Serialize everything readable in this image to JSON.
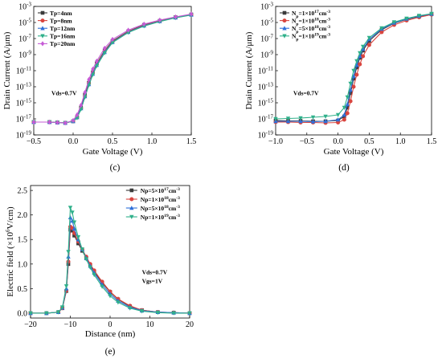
{
  "chart_data": [
    {
      "panel": "(c)",
      "type": "line",
      "xlabel": "Gate Voltage (V)",
      "ylabel": "Drain Current (A/μm)",
      "xlim": [
        -0.5,
        1.5
      ],
      "ylim_exp": [
        -19,
        -3
      ],
      "yscale": "log",
      "xticks": [
        "−0.5",
        "0.0",
        "0.5",
        "1.0",
        "1.5"
      ],
      "ytick_exponents": [
        "-3",
        "-5",
        "-7",
        "-9",
        "-11",
        "-13",
        "-15",
        "-17",
        "-19"
      ],
      "annotation": "Vds=0.7V",
      "legend_position": "top-left",
      "x": [
        -0.5,
        -0.3,
        -0.2,
        -0.1,
        0.0,
        0.05,
        0.1,
        0.15,
        0.2,
        0.25,
        0.3,
        0.4,
        0.5,
        0.7,
        0.9,
        1.1,
        1.3,
        1.5
      ],
      "series": [
        {
          "name": "Tp=4nm",
          "color": "#3a3a3a",
          "marker": "square",
          "values": [
            -17.4,
            -17.4,
            -17.45,
            -17.5,
            -17.3,
            -16.8,
            -15.6,
            -14.0,
            -12.5,
            -11.2,
            -10.1,
            -8.5,
            -7.3,
            -6.1,
            -5.3,
            -4.8,
            -4.35,
            -4.0
          ]
        },
        {
          "name": "Tp=8nm",
          "color": "#d9453f",
          "marker": "circle",
          "values": [
            -17.4,
            -17.4,
            -17.45,
            -17.5,
            -17.3,
            -16.8,
            -15.7,
            -14.2,
            -12.6,
            -11.3,
            -10.2,
            -8.6,
            -7.4,
            -6.15,
            -5.35,
            -4.82,
            -4.37,
            -4.02
          ]
        },
        {
          "name": "Tp=12nm",
          "color": "#2e6fd9",
          "marker": "triangle-up",
          "values": [
            -17.4,
            -17.4,
            -17.45,
            -17.5,
            -17.3,
            -16.8,
            -15.7,
            -14.2,
            -12.7,
            -11.4,
            -10.3,
            -8.7,
            -7.45,
            -6.2,
            -5.4,
            -4.85,
            -4.4,
            -4.05
          ]
        },
        {
          "name": "Tp=16nm",
          "color": "#2fb08a",
          "marker": "triangle-down",
          "values": [
            -17.4,
            -17.4,
            -17.45,
            -17.5,
            -17.3,
            -16.9,
            -15.8,
            -14.3,
            -12.8,
            -11.5,
            -10.4,
            -8.8,
            -7.5,
            -6.25,
            -5.45,
            -4.88,
            -4.42,
            -4.07
          ]
        },
        {
          "name": "Tp=20nm",
          "color": "#c65bd6",
          "marker": "diamond",
          "values": [
            -17.4,
            -17.4,
            -17.45,
            -17.5,
            -17.2,
            -16.5,
            -15.3,
            -13.7,
            -12.1,
            -10.8,
            -9.8,
            -8.2,
            -7.1,
            -5.95,
            -5.2,
            -4.7,
            -4.3,
            -3.95
          ]
        }
      ]
    },
    {
      "panel": "(d)",
      "type": "line",
      "xlabel": "Gate Voltage (V)",
      "ylabel": "Drain Current (A/μm)",
      "xlim": [
        -1.0,
        1.5
      ],
      "ylim_exp": [
        -19,
        -3
      ],
      "yscale": "log",
      "xticks": [
        "−1.0",
        "−0.5",
        "0.0",
        "0.5",
        "1.0",
        "1.5"
      ],
      "ytick_exponents": [
        "-3",
        "-5",
        "-7",
        "-9",
        "-11",
        "-13",
        "-15",
        "-17",
        "-19"
      ],
      "annotation": "Vds=0.7V",
      "legend_position": "top-left",
      "x": [
        -1.0,
        -0.8,
        -0.6,
        -0.4,
        -0.2,
        0.0,
        0.1,
        0.15,
        0.2,
        0.25,
        0.3,
        0.35,
        0.4,
        0.5,
        0.7,
        0.9,
        1.1,
        1.3,
        1.5
      ],
      "series": [
        {
          "name": "1×10",
          "name_sup": "17",
          "name_tail": "cm",
          "name_tail_sup": "-3",
          "color": "#3a3a3a",
          "marker": "square",
          "values": [
            -17.2,
            -17.25,
            -17.25,
            -17.3,
            -17.3,
            -17.2,
            -16.7,
            -15.6,
            -13.8,
            -12.0,
            -10.6,
            -9.4,
            -8.5,
            -7.3,
            -5.9,
            -5.1,
            -4.6,
            -4.25,
            -3.95
          ]
        },
        {
          "name": "1×10",
          "name_sup": "18",
          "name_tail": "cm",
          "name_tail_sup": "-3",
          "color": "#d9453f",
          "marker": "circle",
          "values": [
            -17.4,
            -17.4,
            -17.45,
            -17.45,
            -17.5,
            -17.45,
            -17.1,
            -16.3,
            -14.8,
            -13.0,
            -11.5,
            -10.2,
            -9.2,
            -7.8,
            -6.2,
            -5.3,
            -4.75,
            -4.35,
            -4.02
          ]
        },
        {
          "name": "5×10",
          "name_sup": "18",
          "name_tail": "cm",
          "name_tail_sup": "-3",
          "color": "#2e6fd9",
          "marker": "triangle-up",
          "values": [
            -17.3,
            -17.3,
            -17.3,
            -17.35,
            -17.3,
            -17.1,
            -16.5,
            -15.2,
            -13.4,
            -11.7,
            -10.3,
            -9.2,
            -8.3,
            -7.1,
            -5.8,
            -5.05,
            -4.55,
            -4.2,
            -3.93
          ]
        },
        {
          "name": "1×10",
          "name_sup": "19",
          "name_tail": "cm",
          "name_tail_sup": "-3",
          "color": "#2fb08a",
          "marker": "triangle-down",
          "values": [
            -17.0,
            -16.95,
            -16.9,
            -16.8,
            -16.7,
            -16.5,
            -15.6,
            -14.3,
            -12.6,
            -11.0,
            -9.8,
            -8.8,
            -8.0,
            -6.9,
            -5.7,
            -4.95,
            -4.5,
            -4.15,
            -3.9
          ]
        }
      ],
      "legend_prefix": "N",
      "legend_prefix_sub": "p"
    },
    {
      "panel": "(e)",
      "type": "line",
      "xlabel": "Distance (nm)",
      "ylabel_main": "Electric field (×10",
      "ylabel_sup": "6",
      "ylabel_tail": "V/cm)",
      "xlim": [
        -20,
        20
      ],
      "ylim": [
        -0.1,
        2.6
      ],
      "xticks": [
        "−20",
        "−10",
        "0",
        "10",
        "20"
      ],
      "yticks": [
        "0.0",
        "0.5",
        "1.0",
        "1.5",
        "2.0",
        "2.5"
      ],
      "annotation_lines": [
        "Vds=0.7V",
        "Vgs=1V"
      ],
      "legend_position": "top-right",
      "x": [
        -20,
        -16,
        -13,
        -12,
        -11,
        -10.5,
        -10,
        -9.5,
        -9,
        -8,
        -7,
        -6,
        -5,
        -4,
        -2,
        0,
        2,
        5,
        8,
        12,
        16,
        20
      ],
      "series": [
        {
          "name": "Np=5×10",
          "name_sup": "17",
          "name_tail": "cm",
          "name_tail_sup": "-3",
          "color": "#3a3a3a",
          "marker": "square",
          "values": [
            0.0,
            0.0,
            0.02,
            0.1,
            0.45,
            1.0,
            1.7,
            1.68,
            1.58,
            1.42,
            1.27,
            1.12,
            0.98,
            0.85,
            0.62,
            0.43,
            0.28,
            0.14,
            0.06,
            0.02,
            0.01,
            0.0
          ]
        },
        {
          "name": "Np=1×10",
          "name_sup": "18",
          "name_tail": "cm",
          "name_tail_sup": "-3",
          "color": "#d9453f",
          "marker": "circle",
          "values": [
            0.0,
            0.0,
            0.02,
            0.1,
            0.46,
            1.05,
            1.76,
            1.73,
            1.63,
            1.46,
            1.3,
            1.15,
            1.0,
            0.87,
            0.64,
            0.44,
            0.29,
            0.15,
            0.06,
            0.02,
            0.01,
            0.0
          ]
        },
        {
          "name": "Np=5×10",
          "name_sup": "18",
          "name_tail": "cm",
          "name_tail_sup": "-3",
          "color": "#2e6fd9",
          "marker": "triangle-up",
          "values": [
            0.0,
            0.0,
            0.02,
            0.11,
            0.5,
            1.15,
            1.95,
            1.88,
            1.72,
            1.5,
            1.3,
            1.12,
            0.96,
            0.82,
            0.58,
            0.39,
            0.25,
            0.12,
            0.05,
            0.02,
            0.01,
            0.0
          ]
        },
        {
          "name": "Np=1×10",
          "name_sup": "19",
          "name_tail": "cm",
          "name_tail_sup": "-3",
          "color": "#2fb08a",
          "marker": "triangle-down",
          "values": [
            0.0,
            0.0,
            0.02,
            0.12,
            0.55,
            1.25,
            2.15,
            2.05,
            1.85,
            1.55,
            1.3,
            1.1,
            0.93,
            0.78,
            0.54,
            0.35,
            0.22,
            0.1,
            0.04,
            0.01,
            0.0,
            0.0
          ]
        }
      ]
    }
  ]
}
